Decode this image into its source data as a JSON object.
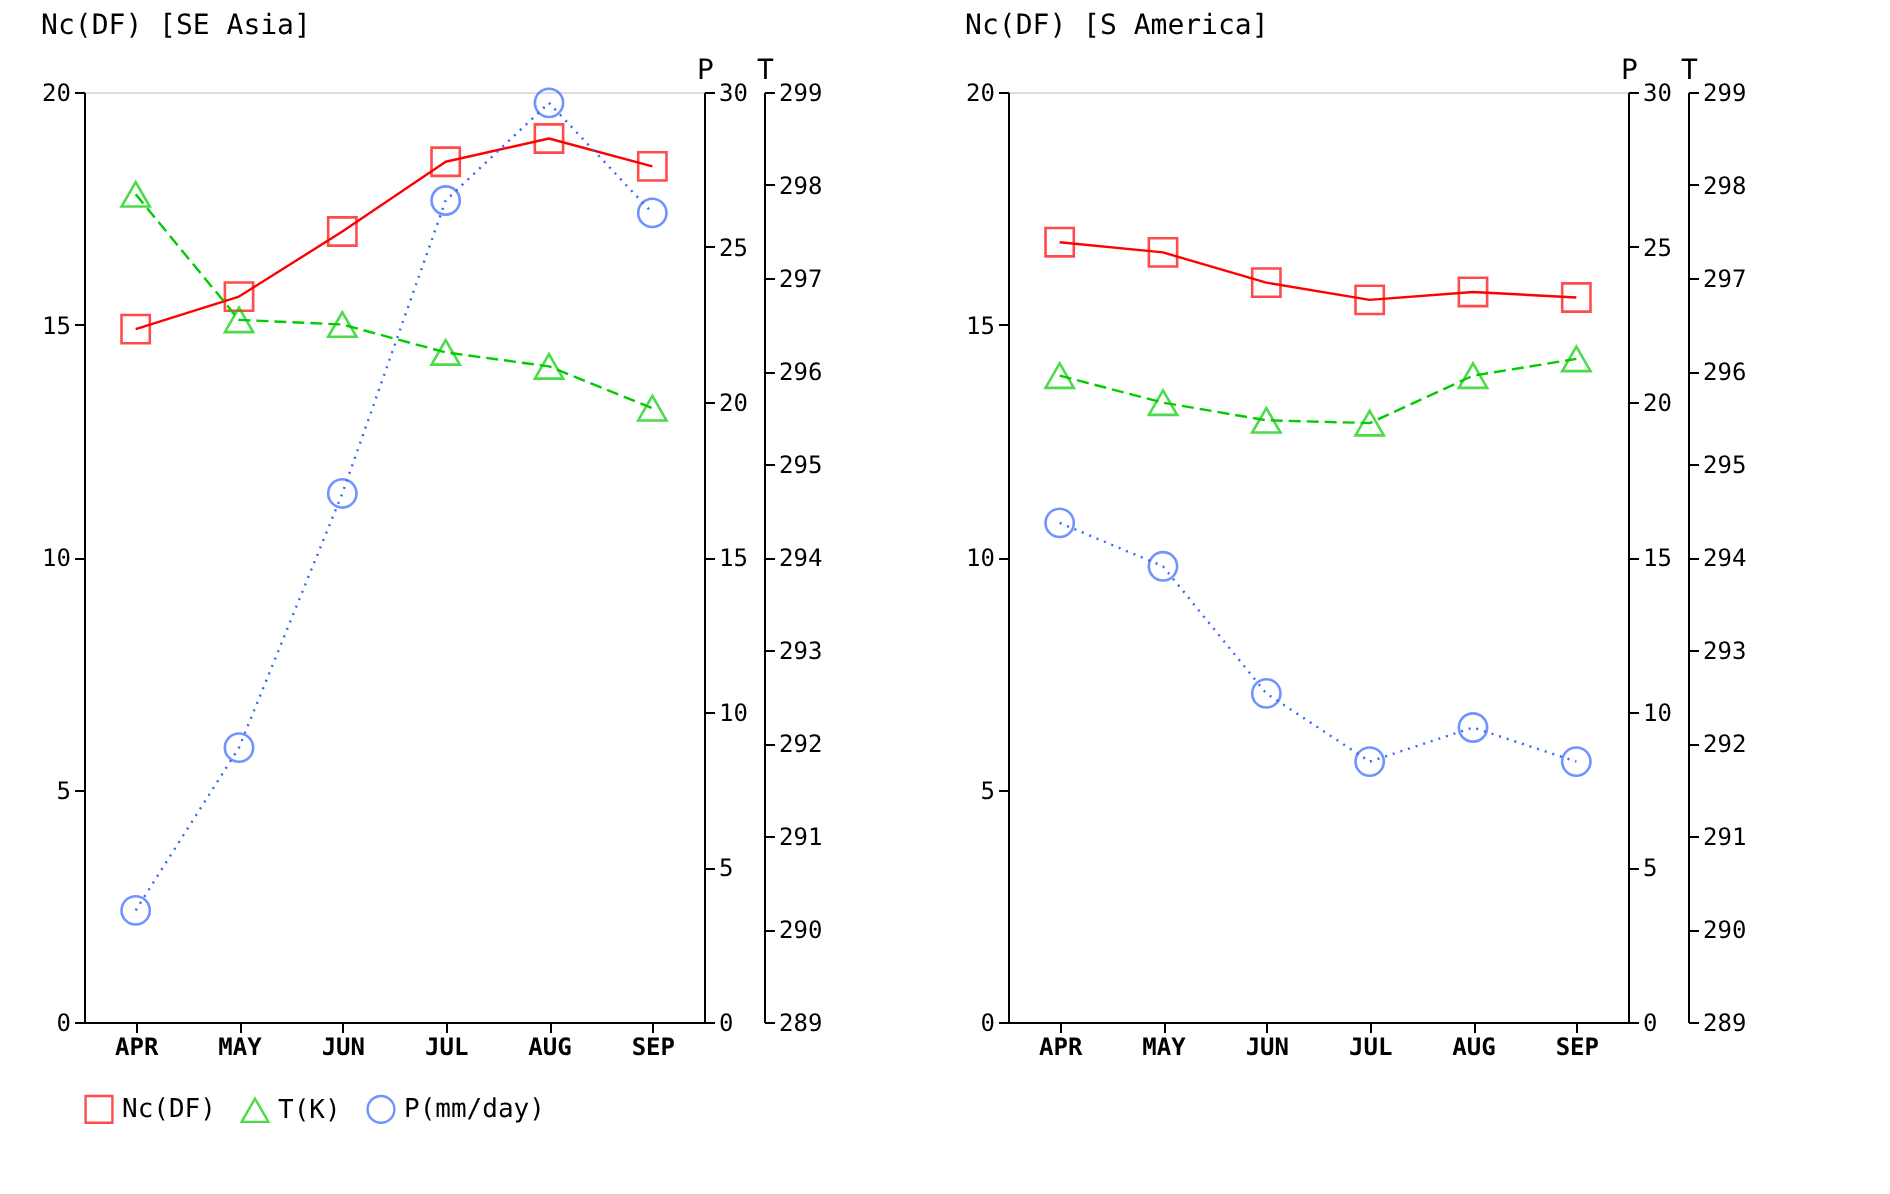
{
  "chart_data": [
    {
      "type": "line",
      "title": "Nc(DF) [SE Asia]",
      "y2label": "P",
      "y3label": "T",
      "categories": [
        "APR",
        "MAY",
        "JUN",
        "JUL",
        "AUG",
        "SEP"
      ],
      "series": [
        {
          "name": "Nc(DF)",
          "color": "#ff0000",
          "marker": "square",
          "line_style": "solid",
          "axis": "y",
          "values": [
            14.9,
            15.6,
            17.0,
            18.5,
            19.0,
            18.4
          ]
        },
        {
          "name": "T(K)",
          "color": "#00cc00",
          "marker": "triangle",
          "line_style": "dashed",
          "axis": "y3",
          "values": [
            297.9,
            296.55,
            296.5,
            296.2,
            296.05,
            295.6
          ]
        },
        {
          "name": "P(mm/day)",
          "color": "#3366ff",
          "marker": "circle",
          "line_style": "dotted",
          "axis": "y2",
          "values": [
            3.6,
            8.85,
            17.05,
            26.5,
            29.65,
            26.1
          ]
        }
      ],
      "ylim": [
        0,
        20
      ],
      "yticks": [
        0,
        5,
        10,
        15,
        20
      ],
      "y2lim": [
        0,
        30
      ],
      "y2ticks": [
        0,
        5,
        10,
        15,
        20,
        25,
        30
      ],
      "y3lim": [
        289,
        299
      ],
      "y3ticks": [
        289,
        290,
        291,
        292,
        293,
        294,
        295,
        296,
        297,
        298,
        299
      ],
      "grid": false,
      "legend": "bottom"
    },
    {
      "type": "line",
      "title": "Nc(DF) [S America]",
      "y2label": "P",
      "y3label": "T",
      "categories": [
        "APR",
        "MAY",
        "JUN",
        "JUL",
        "AUG",
        "SEP"
      ],
      "series": [
        {
          "color": "#ff0000",
          "marker": "square",
          "line_style": "solid",
          "axis": "y",
          "values": [
            16.77,
            16.55,
            15.9,
            15.53,
            15.7,
            15.58
          ]
        },
        {
          "color": "#00cc00",
          "marker": "triangle",
          "line_style": "dashed",
          "axis": "y3",
          "values": [
            295.95,
            295.66,
            295.47,
            295.44,
            295.95,
            296.13
          ]
        },
        {
          "color": "#3366ff",
          "marker": "circle",
          "line_style": "dotted",
          "axis": "y2",
          "values": [
            16.1,
            14.7,
            10.6,
            8.4,
            9.5,
            8.4
          ]
        }
      ],
      "ylim": [
        0,
        20
      ],
      "yticks": [
        0,
        5,
        10,
        15,
        20
      ],
      "y2lim": [
        0,
        30
      ],
      "y2ticks": [
        0,
        5,
        10,
        15,
        20,
        25,
        30
      ],
      "y3lim": [
        289,
        299
      ],
      "y3ticks": [
        289,
        290,
        291,
        292,
        293,
        294,
        295,
        296,
        297,
        298,
        299
      ],
      "grid": false,
      "legend": false
    }
  ]
}
